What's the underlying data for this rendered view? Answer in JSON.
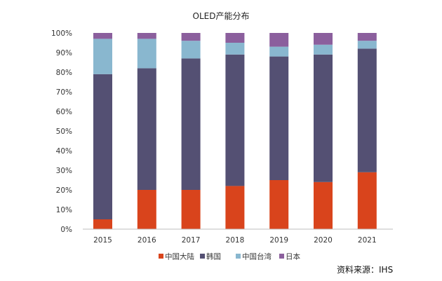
{
  "chart_data": {
    "type": "bar",
    "stacked": true,
    "title": "OLED产能分布",
    "categories": [
      "2015",
      "2016",
      "2017",
      "2018",
      "2019",
      "2020",
      "2021"
    ],
    "y_ticks": [
      "0%",
      "10%",
      "20%",
      "30%",
      "40%",
      "50%",
      "60%",
      "70%",
      "80%",
      "90%",
      "100%"
    ],
    "ylim": [
      0,
      100
    ],
    "series": [
      {
        "name": "中国大陆",
        "color": "#d9441c",
        "values": [
          5,
          20,
          20,
          22,
          25,
          24,
          29
        ]
      },
      {
        "name": "韩国",
        "color": "#545073",
        "values": [
          74,
          62,
          67,
          67,
          63,
          65,
          63
        ]
      },
      {
        "name": "中国台湾",
        "color": "#89b7cf",
        "values": [
          18,
          15,
          9,
          6,
          5,
          5,
          4
        ]
      },
      {
        "name": "日本",
        "color": "#8b5f9d",
        "values": [
          3,
          3,
          4,
          5,
          7,
          6,
          4
        ]
      }
    ],
    "legend_position": "bottom",
    "grid": false
  },
  "source_label": "资料来源：IHS"
}
